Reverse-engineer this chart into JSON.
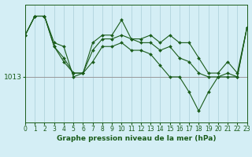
{
  "title": "Graphe pression niveau de la mer (hPa)",
  "background_color": "#d4eef5",
  "grid_color": "#aacdd8",
  "line_color": "#1a5c1a",
  "ref_line_value": 1013,
  "ref_line_color": "#999999",
  "x_ticks": [
    0,
    1,
    2,
    3,
    4,
    5,
    6,
    7,
    8,
    9,
    10,
    11,
    12,
    13,
    14,
    15,
    16,
    17,
    18,
    19,
    20,
    21,
    22,
    23
  ],
  "series": [
    [
      1024,
      1029,
      1029,
      1022,
      1021,
      1013,
      1014,
      1022,
      1024,
      1024,
      1028,
      1023,
      1023,
      1024,
      1022,
      1024,
      1022,
      1022,
      1018,
      1014,
      1014,
      1017,
      1014,
      1026
    ],
    [
      1024,
      1029,
      1029,
      1021,
      1018,
      1014,
      1014,
      1020,
      1023,
      1023,
      1024,
      1023,
      1022,
      1022,
      1020,
      1021,
      1018,
      1017,
      1014,
      1013,
      1013,
      1014,
      1013,
      1026
    ],
    [
      1024,
      1029,
      1029,
      1021,
      1017,
      1014,
      1014,
      1017,
      1021,
      1021,
      1022,
      1020,
      1020,
      1019,
      1016,
      1013,
      1013,
      1009,
      1004,
      1009,
      1013,
      1013,
      1013,
      1026
    ]
  ],
  "ylim": [
    1001,
    1032
  ],
  "ylabel_1013": "1013",
  "ylabel_fontsize": 6.5,
  "xlabel_fontsize": 6.5,
  "tick_fontsize": 5.5
}
